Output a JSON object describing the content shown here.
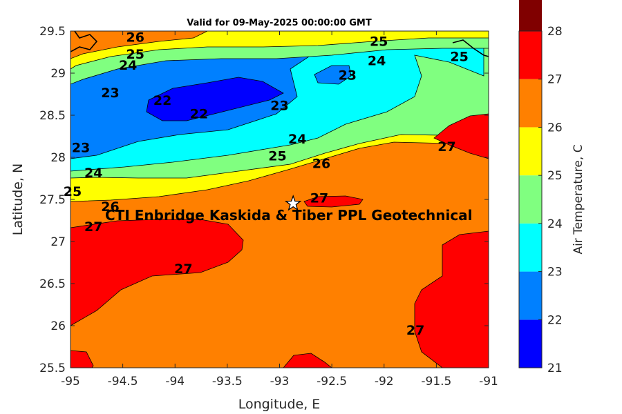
{
  "chart_data": {
    "type": "contour",
    "title": "Valid for 09-May-2025 00:00:00 GMT",
    "xlabel": "Longitude, E",
    "ylabel": "Latitude, N",
    "xlim": [
      -95,
      -91
    ],
    "ylim": [
      25.5,
      29.5
    ],
    "xticks": [
      "-95",
      "-94.5",
      "-94",
      "-93.5",
      "-93",
      "-92.5",
      "-92",
      "-91.5",
      "-91"
    ],
    "yticks": [
      "25.5",
      "26",
      "26.5",
      "27",
      "27.5",
      "28",
      "28.5",
      "29",
      "29.5"
    ],
    "colorbar": {
      "label": "Air Temperature, C",
      "levels": [
        21,
        22,
        23,
        24,
        25,
        26,
        27,
        28
      ],
      "tick_labels": [
        "21",
        "22",
        "23",
        "24",
        "25",
        "26",
        "27",
        "28"
      ],
      "colors": [
        "#0000ff",
        "#0080ff",
        "#00ffff",
        "#80ff80",
        "#ffff00",
        "#ff8000",
        "#ff0000",
        "#800000"
      ]
    },
    "contour_labels": [
      {
        "text": "26",
        "lon": -94.38,
        "lat": 29.43
      },
      {
        "text": "25",
        "lon": -94.38,
        "lat": 29.23
      },
      {
        "text": "24",
        "lon": -94.45,
        "lat": 29.1
      },
      {
        "text": "23",
        "lon": -94.62,
        "lat": 28.77
      },
      {
        "text": "22",
        "lon": -94.12,
        "lat": 28.68
      },
      {
        "text": "22",
        "lon": -93.77,
        "lat": 28.52
      },
      {
        "text": "23",
        "lon": -92.35,
        "lat": 28.98
      },
      {
        "text": "24",
        "lon": -92.07,
        "lat": 29.15
      },
      {
        "text": "25",
        "lon": -92.05,
        "lat": 29.38
      },
      {
        "text": "23",
        "lon": -93.0,
        "lat": 28.62
      },
      {
        "text": "23",
        "lon": -94.9,
        "lat": 28.12
      },
      {
        "text": "24",
        "lon": -94.78,
        "lat": 27.82
      },
      {
        "text": "25",
        "lon": -94.98,
        "lat": 27.6
      },
      {
        "text": "26",
        "lon": -94.62,
        "lat": 27.42
      },
      {
        "text": "27",
        "lon": -94.78,
        "lat": 27.18
      },
      {
        "text": "24",
        "lon": -92.83,
        "lat": 28.22
      },
      {
        "text": "25",
        "lon": -93.02,
        "lat": 28.02
      },
      {
        "text": "26",
        "lon": -92.6,
        "lat": 27.93
      },
      {
        "text": "27",
        "lon": -92.62,
        "lat": 27.52
      },
      {
        "text": "27",
        "lon": -91.4,
        "lat": 28.13
      },
      {
        "text": "25",
        "lon": -91.28,
        "lat": 29.2
      },
      {
        "text": "27",
        "lon": -93.92,
        "lat": 26.68
      },
      {
        "text": "27",
        "lon": -91.7,
        "lat": 25.95
      }
    ],
    "site": {
      "name": "CTI Enbridge  Kaskida & Tiber PPL Geotechnical",
      "lon": -92.87,
      "lat": 27.45
    }
  }
}
